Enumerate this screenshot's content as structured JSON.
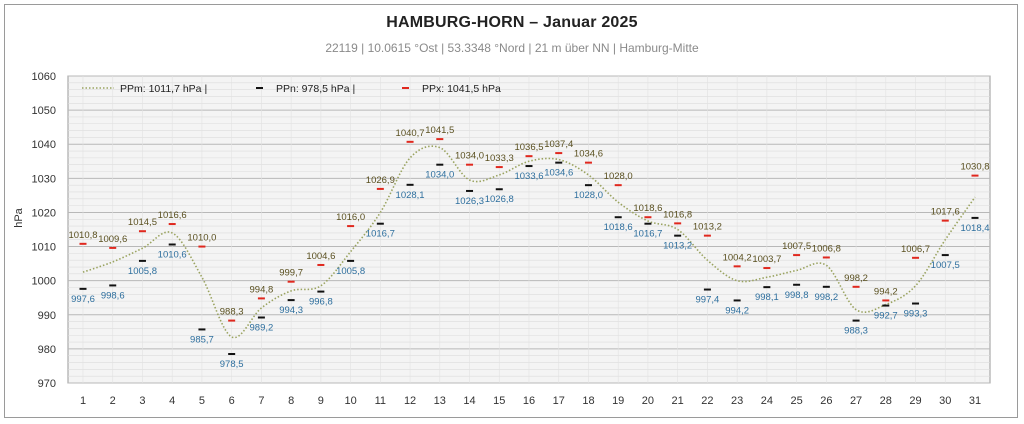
{
  "title": "HAMBURG-HORN   –  Januar 2025",
  "subtitle": "22119  |  10.0615 °Ost  |  53.3348 °Nord   | 21 m über NN  |  Hamburg-Mitte",
  "chart_data": {
    "type": "line",
    "ylabel": "hPa",
    "ylim": [
      970,
      1060
    ],
    "yticks": [
      970,
      980,
      990,
      1000,
      1010,
      1020,
      1030,
      1040,
      1050,
      1060
    ],
    "grid": true,
    "legend_position": "top-left",
    "x": [
      1,
      2,
      3,
      4,
      5,
      6,
      7,
      8,
      9,
      10,
      11,
      12,
      13,
      14,
      15,
      16,
      17,
      18,
      19,
      20,
      21,
      22,
      23,
      24,
      25,
      26,
      27,
      28,
      29,
      30,
      31
    ],
    "series": [
      {
        "name": "PPm",
        "style": "dotted-line",
        "color": "#9aa360",
        "legend": "PPm: 1011,7 hPa  |",
        "values": [
          1002.5,
          1005.5,
          1009.5,
          1014.0,
          1001.0,
          983.5,
          992.0,
          997.0,
          998.5,
          1008.5,
          1020.0,
          1036.0,
          1039.0,
          1029.5,
          1031.0,
          1035.0,
          1035.5,
          1031.0,
          1023.0,
          1017.5,
          1015.0,
          1006.0,
          1000.0,
          1001.0,
          1003.0,
          1004.5,
          991.5,
          993.0,
          998.5,
          1012.0,
          1024.5
        ]
      },
      {
        "name": "PPn",
        "style": "dash-marker",
        "color": "#111111",
        "legend": "PPn: 978,5 hPa  |",
        "values": [
          997.6,
          998.6,
          1005.8,
          1010.6,
          985.7,
          978.5,
          989.2,
          994.3,
          996.8,
          1005.8,
          1016.7,
          1028.1,
          1034.0,
          1026.3,
          1026.8,
          1033.6,
          1034.6,
          1028.0,
          1018.6,
          1016.7,
          1013.2,
          997.4,
          994.2,
          998.1,
          998.8,
          998.2,
          988.3,
          992.7,
          993.3,
          1007.5,
          1018.4
        ],
        "labels": [
          "997,6",
          "998,6",
          "1005,8",
          "1010,6",
          "985,7",
          "978,5",
          "989,2",
          "994,3",
          "996,8",
          "1005,8",
          "1016,7",
          "1028,1",
          "1034,0",
          "1026,3",
          "1026,8",
          "1033,6",
          "1034,6",
          "1028,0",
          "1018,6",
          "1016,7",
          "1013,2",
          "997,4",
          "994,2",
          "998,1",
          "998,8",
          "998,2",
          "988,3",
          "992,7",
          "993,3",
          "1007,5",
          "1018,4"
        ],
        "label_color": "#2e6f9e"
      },
      {
        "name": "PPx",
        "style": "dash-marker",
        "color": "#e0281e",
        "legend": "PPx: 1041,5 hPa",
        "values": [
          1010.8,
          1009.6,
          1014.5,
          1016.6,
          1010.0,
          988.3,
          994.8,
          999.7,
          1004.6,
          1016.0,
          1026.9,
          1040.7,
          1041.5,
          1034.0,
          1033.3,
          1036.5,
          1037.4,
          1034.6,
          1028.0,
          1018.6,
          1016.8,
          1013.2,
          1004.2,
          1003.7,
          1007.5,
          1006.8,
          998.2,
          994.2,
          1006.7,
          1017.6,
          1030.8
        ],
        "labels": [
          "1010,8",
          "1009,6",
          "1014,5",
          "1016,6",
          "1010,0",
          "988,3",
          "994,8",
          "999,7",
          "1004,6",
          "1016,0",
          "1026,9",
          "1040,7",
          "1041,5",
          "1034,0",
          "1033,3",
          "1036,5",
          "1037,4",
          "1034,6",
          "1028,0",
          "1018,6",
          "1016,8",
          "1013,2",
          "1004,2",
          "1003,7",
          "1007,5",
          "1006,8",
          "998,2",
          "994,2",
          "1006,7",
          "1017,6",
          "1030,8"
        ],
        "label_color": "#5a5020"
      }
    ]
  }
}
